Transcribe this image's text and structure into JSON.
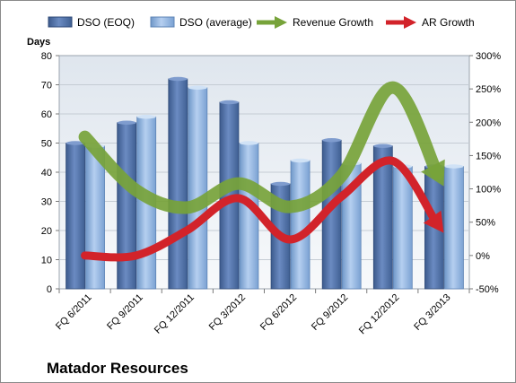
{
  "chart_data": {
    "type": "bar",
    "company": "Matador Resources",
    "left_axis": {
      "title": "Days",
      "ylim": [
        0,
        80
      ],
      "ticks": [
        0,
        10,
        20,
        30,
        40,
        50,
        60,
        70,
        80
      ]
    },
    "right_axis": {
      "ylim": [
        -50,
        300
      ],
      "ticks": [
        "-50%",
        "0%",
        "50%",
        "100%",
        "150%",
        "200%",
        "250%",
        "300%"
      ]
    },
    "categories": [
      "FQ 6/2011",
      "FQ 9/2011",
      "FQ 12/2011",
      "FQ 3/2012",
      "FQ 6/2012",
      "FQ 9/2012",
      "FQ 12/2012",
      "FQ 3/2013"
    ],
    "legend_placement": "top",
    "series": [
      {
        "name": "DSO (EOQ)",
        "kind": "bar",
        "axis": "left",
        "color": "#4f6da0",
        "values": [
          50,
          57,
          72,
          64,
          36,
          51,
          49,
          42
        ]
      },
      {
        "name": "DSO (average)",
        "kind": "bar",
        "axis": "left",
        "color": "#8eb1dc",
        "values": [
          49,
          59,
          69,
          50,
          44,
          43,
          42,
          42
        ]
      },
      {
        "name": "Revenue Growth",
        "kind": "line-arrow",
        "axis": "right",
        "color": "#77a33a",
        "values": [
          178,
          98,
          72,
          108,
          73,
          119,
          252,
          104
        ]
      },
      {
        "name": "AR Growth",
        "kind": "line-arrow",
        "axis": "right",
        "color": "#d2232a",
        "values": [
          0,
          0,
          38,
          86,
          24,
          88,
          142,
          34
        ]
      }
    ]
  }
}
